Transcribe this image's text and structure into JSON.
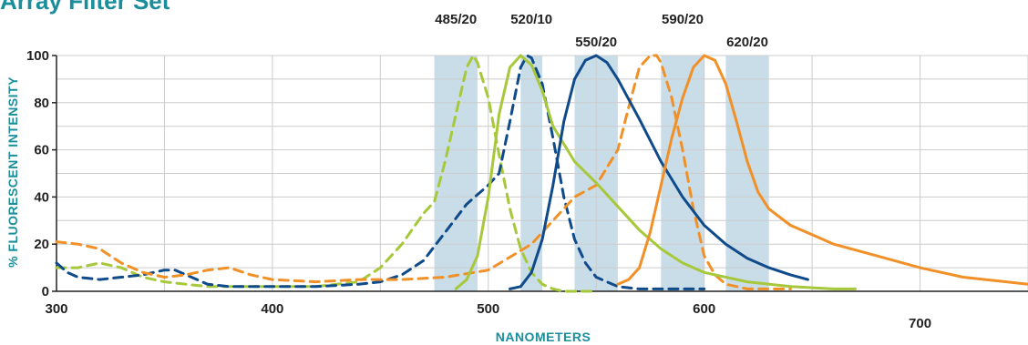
{
  "title": "Array Filter Set",
  "colors": {
    "lime": "#a6c83a",
    "navy": "#0f4a8a",
    "orange": "#f29028",
    "band": "#c9dde9",
    "grid": "#cccccc",
    "teal": "#1b8e9c"
  },
  "chart_data": {
    "type": "line",
    "xlabel": "NANOMETERS",
    "ylabel": "% FLUORESCENT INTENSITY",
    "xlim": [
      300,
      750
    ],
    "ylim": [
      0,
      100
    ],
    "grid": true,
    "x_ticks": [
      {
        "value": 300,
        "label": "300"
      },
      {
        "value": 400,
        "label": "400"
      },
      {
        "value": 500,
        "label": "500"
      },
      {
        "value": 600,
        "label": "600"
      },
      {
        "value": 700,
        "label": "700"
      }
    ],
    "y_ticks": [
      {
        "value": 0,
        "label": "0"
      },
      {
        "value": 20,
        "label": "20"
      },
      {
        "value": 40,
        "label": "40"
      },
      {
        "value": 60,
        "label": "60"
      },
      {
        "value": 80,
        "label": "80"
      },
      {
        "value": 100,
        "label": "100"
      }
    ],
    "filter_bands": [
      {
        "label": "485/20",
        "start": 475,
        "end": 495
      },
      {
        "label": "520/10",
        "start": 515,
        "end": 525
      },
      {
        "label": "550/20",
        "start": 540,
        "end": 560
      },
      {
        "label": "590/20",
        "start": 580,
        "end": 600
      },
      {
        "label": "620/20",
        "start": 610,
        "end": 630
      }
    ],
    "series": [
      {
        "color": "lime",
        "style": "dashed",
        "x": [
          300,
          310,
          320,
          330,
          340,
          350,
          360,
          370,
          380,
          390,
          400,
          420,
          440,
          450,
          460,
          470,
          475,
          480,
          485,
          490,
          493,
          495,
          500,
          505,
          510,
          515,
          520,
          525,
          530,
          535,
          540,
          550
        ],
        "y": [
          10,
          10,
          12,
          10,
          6,
          4,
          3,
          2,
          2,
          2,
          2,
          2,
          4,
          10,
          20,
          33,
          38,
          55,
          75,
          95,
          100,
          97,
          82,
          58,
          35,
          18,
          8,
          3,
          1,
          0,
          0,
          0
        ]
      },
      {
        "color": "navy",
        "style": "dashed",
        "x": [
          300,
          305,
          310,
          320,
          330,
          340,
          350,
          355,
          360,
          370,
          380,
          400,
          420,
          440,
          450,
          460,
          470,
          480,
          490,
          500,
          505,
          510,
          515,
          518,
          520,
          525,
          530,
          535,
          540,
          545,
          550,
          560,
          570,
          580,
          590,
          600
        ],
        "y": [
          12,
          8,
          6,
          5,
          6,
          7,
          9,
          9,
          7,
          3,
          2,
          2,
          2,
          3,
          4,
          7,
          13,
          25,
          37,
          45,
          50,
          72,
          95,
          100,
          99,
          88,
          65,
          40,
          22,
          12,
          6,
          2,
          1,
          1,
          1,
          1
        ]
      },
      {
        "color": "orange",
        "style": "dashed",
        "x": [
          300,
          310,
          320,
          330,
          340,
          350,
          360,
          370,
          380,
          390,
          400,
          420,
          440,
          460,
          480,
          500,
          520,
          530,
          540,
          550,
          560,
          565,
          570,
          575,
          578,
          580,
          585,
          590,
          595,
          600,
          605,
          610,
          620,
          630,
          640
        ],
        "y": [
          21,
          20,
          18,
          12,
          8,
          6,
          7,
          9,
          10,
          7,
          5,
          4,
          5,
          5,
          6,
          9,
          20,
          30,
          40,
          45,
          60,
          78,
          95,
          100,
          100,
          97,
          82,
          60,
          35,
          15,
          7,
          3,
          1,
          1,
          1
        ]
      },
      {
        "color": "lime",
        "style": "solid",
        "x": [
          485,
          490,
          495,
          500,
          505,
          510,
          515,
          520,
          525,
          530,
          540,
          550,
          560,
          570,
          580,
          590,
          600,
          620,
          640,
          660,
          670
        ],
        "y": [
          1,
          5,
          15,
          40,
          75,
          95,
          100,
          96,
          85,
          70,
          55,
          46,
          36,
          26,
          18,
          12,
          8,
          4,
          2,
          1,
          1
        ]
      },
      {
        "color": "navy",
        "style": "solid",
        "x": [
          510,
          515,
          520,
          525,
          530,
          535,
          540,
          545,
          550,
          555,
          560,
          570,
          580,
          590,
          600,
          610,
          620,
          630,
          640,
          648
        ],
        "y": [
          1,
          2,
          8,
          22,
          45,
          72,
          90,
          98,
          100,
          97,
          90,
          73,
          55,
          40,
          28,
          20,
          14,
          10,
          7,
          5
        ]
      },
      {
        "color": "orange",
        "style": "solid",
        "x": [
          560,
          565,
          570,
          575,
          580,
          585,
          590,
          595,
          600,
          605,
          610,
          615,
          620,
          625,
          630,
          640,
          650,
          660,
          680,
          700,
          720,
          740,
          750
        ],
        "y": [
          3,
          5,
          10,
          25,
          45,
          65,
          82,
          95,
          100,
          98,
          88,
          72,
          55,
          42,
          35,
          28,
          24,
          20,
          15,
          10,
          6,
          4,
          3
        ]
      }
    ]
  }
}
